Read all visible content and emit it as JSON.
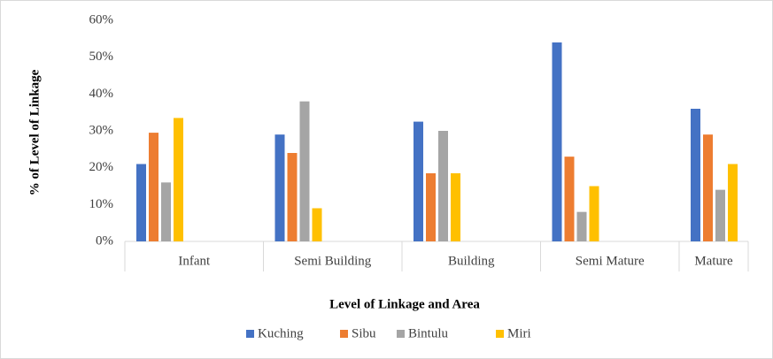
{
  "chart_data": {
    "type": "bar",
    "x_label": "Level of Linkage and Area",
    "y_label": "% of Level of Linkage",
    "categories": [
      "Infant",
      "Semi Building",
      "Building",
      "Semi Mature",
      "Mature"
    ],
    "series": [
      {
        "name": "Kuching",
        "color": "#4472c4",
        "values": [
          21,
          29,
          32.5,
          54,
          36
        ]
      },
      {
        "name": "Sibu",
        "color": "#ed7d31",
        "values": [
          29.5,
          24,
          18.5,
          23,
          29
        ]
      },
      {
        "name": "Bintulu",
        "color": "#a5a5a5",
        "values": [
          16,
          38,
          30,
          8,
          14
        ]
      },
      {
        "name": "Miri",
        "color": "#ffc000",
        "values": [
          33.5,
          9,
          18.5,
          15,
          21
        ]
      }
    ],
    "ylim": [
      0,
      60
    ],
    "yticks": [
      {
        "value": 0,
        "label": "0%"
      },
      {
        "value": 10,
        "label": "10%"
      },
      {
        "value": 20,
        "label": "20%"
      },
      {
        "value": 30,
        "label": "30%"
      },
      {
        "value": 40,
        "label": "40%"
      },
      {
        "value": 50,
        "label": "50%"
      },
      {
        "value": 60,
        "label": "60%"
      }
    ],
    "grid": false,
    "legend": "bottom"
  }
}
